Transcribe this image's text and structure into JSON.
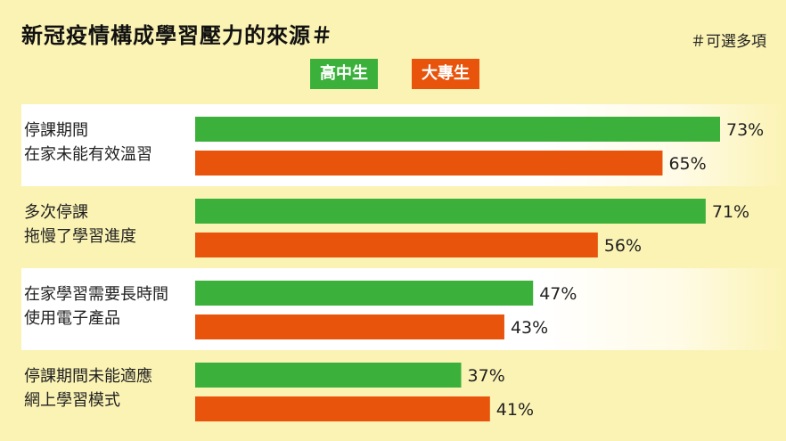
{
  "chart_data": {
    "type": "bar",
    "orientation": "horizontal",
    "title": "新冠疫情構成學習壓力的來源＃",
    "note": "＃可選多項",
    "categories": [
      [
        "停課期間",
        "在家未能有效溫習"
      ],
      [
        "多次停課",
        "拖慢了學習進度"
      ],
      [
        "在家學習需要長時間",
        "使用電子產品"
      ],
      [
        "停課期間未能適應",
        "網上學習模式"
      ]
    ],
    "series": [
      {
        "name": "高中生",
        "color": "#3bb13b",
        "values": [
          73,
          71,
          47,
          37
        ]
      },
      {
        "name": "大專生",
        "color": "#e8540c",
        "values": [
          65,
          56,
          43,
          41
        ]
      }
    ],
    "value_suffix": "%",
    "xlim": [
      0,
      100
    ],
    "grid": false,
    "legend_position": "top-center"
  }
}
